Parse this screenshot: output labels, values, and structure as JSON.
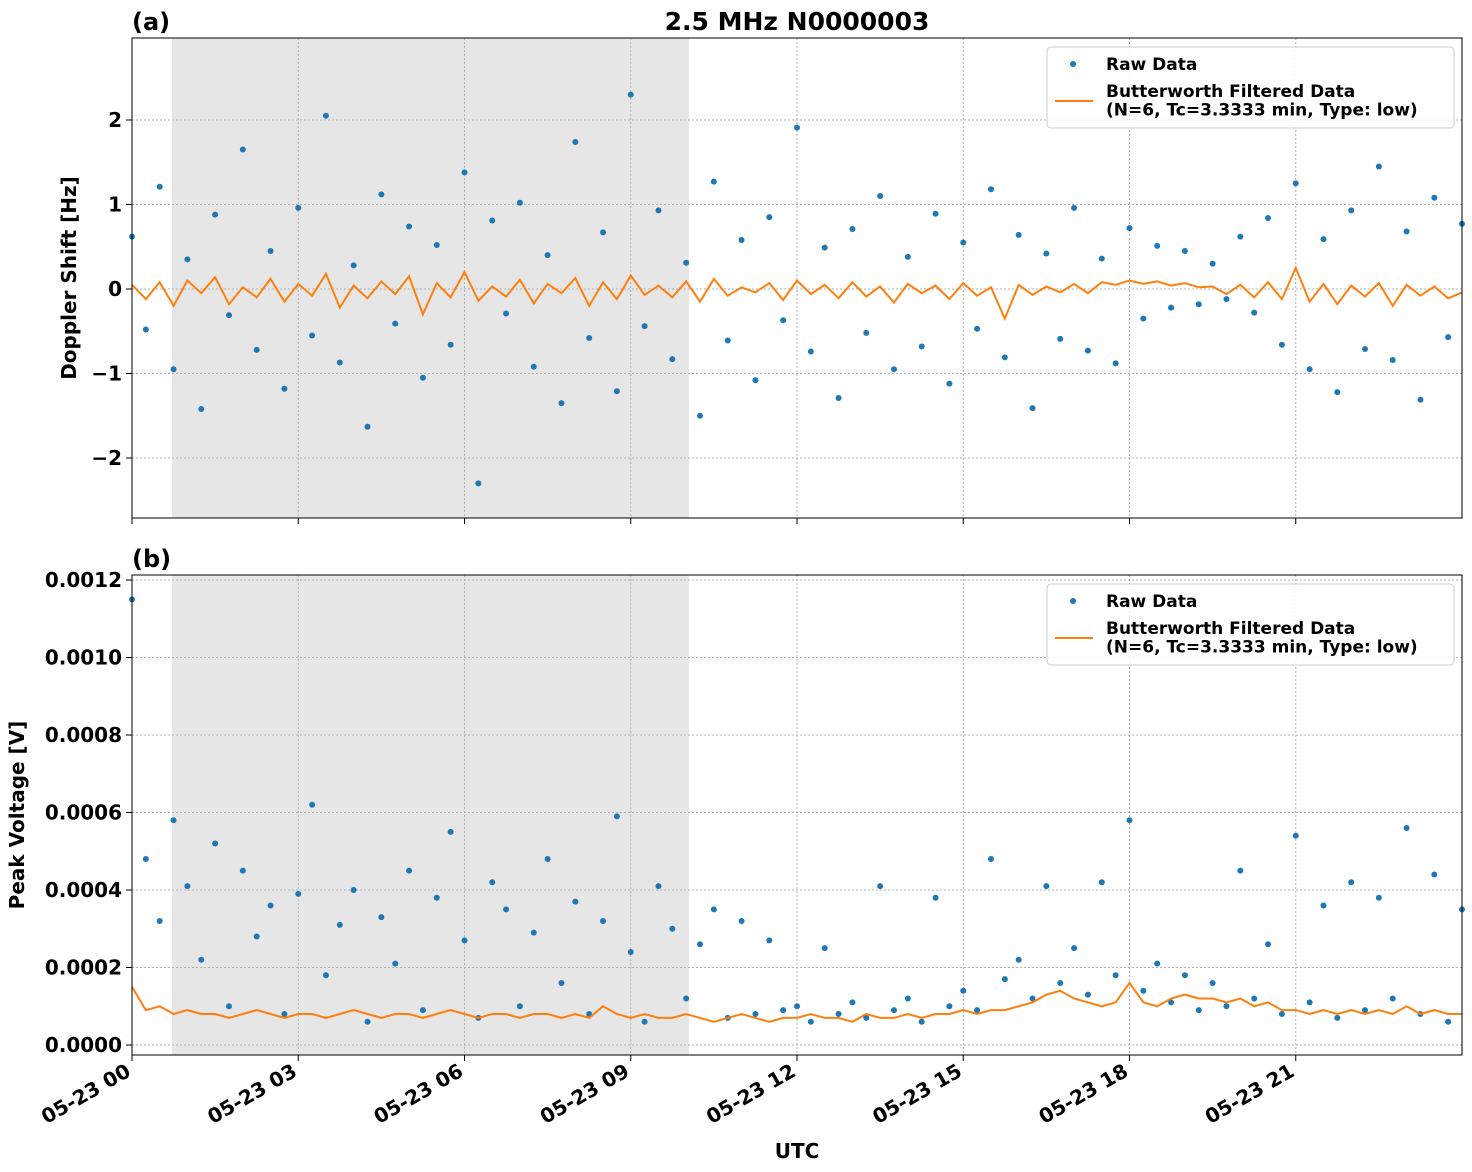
{
  "chart_data": [
    {
      "type": "scatter-line",
      "title": "2.5 MHz N0000003",
      "panel": "(a)",
      "ylabel": "Doppler Shift [Hz]",
      "xlim": [
        0,
        24
      ],
      "xticks": [
        0,
        3,
        6,
        9,
        12,
        15,
        18,
        21
      ],
      "ylim": [
        -2.71,
        2.97
      ],
      "yticks": [
        {
          "value": -2,
          "label": "−2"
        },
        {
          "value": -1,
          "label": "−1"
        },
        0,
        1,
        2
      ],
      "grid": true,
      "legend": "upper right",
      "shaded_span": [
        0.72,
        10.05
      ],
      "shade_color": "#e6e6e6",
      "x": [
        0,
        0.25,
        0.5,
        0.75,
        1,
        1.25,
        1.5,
        1.75,
        2,
        2.25,
        2.5,
        2.75,
        3,
        3.25,
        3.5,
        3.75,
        4,
        4.25,
        4.5,
        4.75,
        5,
        5.25,
        5.5,
        5.75,
        6,
        6.25,
        6.5,
        6.75,
        7,
        7.25,
        7.5,
        7.75,
        8,
        8.25,
        8.5,
        8.75,
        9,
        9.25,
        9.5,
        9.75,
        10,
        10.25,
        10.5,
        10.75,
        11,
        11.25,
        11.5,
        11.75,
        12,
        12.25,
        12.5,
        12.75,
        13,
        13.25,
        13.5,
        13.75,
        14,
        14.25,
        14.5,
        14.75,
        15,
        15.25,
        15.5,
        15.75,
        16,
        16.25,
        16.5,
        16.75,
        17,
        17.25,
        17.5,
        17.75,
        18,
        18.25,
        18.5,
        18.75,
        19,
        19.25,
        19.5,
        19.75,
        20,
        20.25,
        20.5,
        20.75,
        21,
        21.25,
        21.5,
        21.75,
        22,
        22.25,
        22.5,
        22.75,
        23,
        23.25,
        23.5,
        23.75,
        24
      ],
      "series": [
        {
          "name": "Raw Data",
          "kind": "points",
          "color": "#1f77b4",
          "values": [
            0.62,
            -0.48,
            1.21,
            -0.95,
            0.35,
            -1.42,
            0.88,
            -0.31,
            1.65,
            -0.72,
            0.45,
            -1.18,
            0.96,
            -0.55,
            2.05,
            -0.87,
            0.28,
            -1.63,
            1.12,
            -0.41,
            0.74,
            -1.05,
            0.52,
            -0.66,
            1.38,
            -2.3,
            0.81,
            -0.29,
            1.02,
            -0.92,
            0.4,
            -1.35,
            1.74,
            -0.58,
            0.67,
            -1.21,
            2.3,
            -0.44,
            0.93,
            -0.83,
            0.31,
            -1.5,
            1.27,
            -0.61,
            0.58,
            -1.08,
            0.85,
            -0.37,
            1.91,
            -0.74,
            0.49,
            -1.29,
            0.71,
            -0.52,
            1.1,
            -0.95,
            0.38,
            -0.68,
            0.89,
            -1.12,
            0.55,
            -0.47,
            1.18,
            -0.81,
            0.64,
            -1.41,
            0.42,
            -0.59,
            0.96,
            -0.73,
            0.36,
            -0.88,
            0.72,
            -0.35,
            0.51,
            -0.22,
            0.45,
            -0.18,
            0.3,
            -0.12,
            0.62,
            -0.28,
            0.84,
            -0.66,
            1.25,
            -0.95,
            0.59,
            -1.22,
            0.93,
            -0.71,
            1.45,
            -0.84,
            0.68,
            -1.31,
            1.08,
            -0.57,
            0.77
          ]
        },
        {
          "name": "Butterworth Filtered Data\n(N=6, Tc=3.3333 min, Type: low)",
          "kind": "line",
          "color": "#ff7f0e",
          "values": [
            0.05,
            -0.12,
            0.08,
            -0.2,
            0.1,
            -0.05,
            0.14,
            -0.18,
            0.02,
            -0.1,
            0.12,
            -0.15,
            0.06,
            -0.08,
            0.18,
            -0.22,
            0.04,
            -0.11,
            0.09,
            -0.06,
            0.15,
            -0.3,
            0.07,
            -0.1,
            0.2,
            -0.14,
            0.03,
            -0.09,
            0.11,
            -0.17,
            0.06,
            -0.05,
            0.13,
            -0.2,
            0.08,
            -0.12,
            0.16,
            -0.07,
            0.04,
            -0.1,
            0.09,
            -0.15,
            0.12,
            -0.08,
            0.02,
            -0.04,
            0.07,
            -0.13,
            0.1,
            -0.06,
            0.05,
            -0.11,
            0.08,
            -0.09,
            0.03,
            -0.16,
            0.06,
            -0.05,
            0.04,
            -0.12,
            0.07,
            -0.08,
            0.02,
            -0.35,
            0.05,
            -0.07,
            0.03,
            -0.04,
            0.06,
            -0.05,
            0.08,
            0.05,
            0.1,
            0.06,
            0.09,
            0.04,
            0.07,
            0.02,
            0.03,
            -0.06,
            0.05,
            -0.1,
            0.08,
            -0.12,
            0.25,
            -0.15,
            0.06,
            -0.18,
            0.04,
            -0.09,
            0.07,
            -0.2,
            0.05,
            -0.08,
            0.03,
            -0.11,
            -0.04
          ]
        }
      ]
    },
    {
      "type": "scatter-line",
      "panel": "(b)",
      "ylabel": "Peak Voltage [V]",
      "xlabel": "UTC",
      "xlim": [
        0,
        24
      ],
      "xticks": [
        {
          "value": 0,
          "label": "05-23 00"
        },
        {
          "value": 3,
          "label": "05-23 03"
        },
        {
          "value": 6,
          "label": "05-23 06"
        },
        {
          "value": 9,
          "label": "05-23 09"
        },
        {
          "value": 12,
          "label": "05-23 12"
        },
        {
          "value": 15,
          "label": "05-23 15"
        },
        {
          "value": 18,
          "label": "05-23 18"
        },
        {
          "value": 21,
          "label": "05-23 21"
        }
      ],
      "ylim": [
        -2.58e-05,
        0.001213
      ],
      "yticks": [
        {
          "value": 0,
          "label": "0.0000"
        },
        {
          "value": 0.0002,
          "label": "0.0002"
        },
        {
          "value": 0.0004,
          "label": "0.0004"
        },
        {
          "value": 0.0006,
          "label": "0.0006"
        },
        {
          "value": 0.0008,
          "label": "0.0008"
        },
        {
          "value": 0.001,
          "label": "0.0010"
        },
        {
          "value": 0.0012,
          "label": "0.0012"
        }
      ],
      "grid": true,
      "legend": "upper right",
      "shaded_span": [
        0.72,
        10.05
      ],
      "shade_color": "#e6e6e6",
      "x": [
        0,
        0.25,
        0.5,
        0.75,
        1,
        1.25,
        1.5,
        1.75,
        2,
        2.25,
        2.5,
        2.75,
        3,
        3.25,
        3.5,
        3.75,
        4,
        4.25,
        4.5,
        4.75,
        5,
        5.25,
        5.5,
        5.75,
        6,
        6.25,
        6.5,
        6.75,
        7,
        7.25,
        7.5,
        7.75,
        8,
        8.25,
        8.5,
        8.75,
        9,
        9.25,
        9.5,
        9.75,
        10,
        10.25,
        10.5,
        10.75,
        11,
        11.25,
        11.5,
        11.75,
        12,
        12.25,
        12.5,
        12.75,
        13,
        13.25,
        13.5,
        13.75,
        14,
        14.25,
        14.5,
        14.75,
        15,
        15.25,
        15.5,
        15.75,
        16,
        16.25,
        16.5,
        16.75,
        17,
        17.25,
        17.5,
        17.75,
        18,
        18.25,
        18.5,
        18.75,
        19,
        19.25,
        19.5,
        19.75,
        20,
        20.25,
        20.5,
        20.75,
        21,
        21.25,
        21.5,
        21.75,
        22,
        22.25,
        22.5,
        22.75,
        23,
        23.25,
        23.5,
        23.75,
        24
      ],
      "series": [
        {
          "name": "Raw Data",
          "kind": "points",
          "color": "#1f77b4",
          "values": [
            0.00115,
            0.00048,
            0.00032,
            0.00058,
            0.00041,
            0.00022,
            0.00052,
            0.0001,
            0.00045,
            0.00028,
            0.00036,
            8e-05,
            0.00039,
            0.00062,
            0.00018,
            0.00031,
            0.0004,
            6e-05,
            0.00033,
            0.00021,
            0.00045,
            9e-05,
            0.00038,
            0.00055,
            0.00027,
            7e-05,
            0.00042,
            0.00035,
            0.0001,
            0.00029,
            0.00048,
            0.00016,
            0.00037,
            8e-05,
            0.00032,
            0.00059,
            0.00024,
            6e-05,
            0.00041,
            0.0003,
            0.00012,
            0.00026,
            0.00035,
            7e-05,
            0.00032,
            8e-05,
            0.00027,
            9e-05,
            0.0001,
            6e-05,
            0.00025,
            8e-05,
            0.00011,
            7e-05,
            0.00041,
            9e-05,
            0.00012,
            6e-05,
            0.00038,
            0.0001,
            0.00014,
            9e-05,
            0.00048,
            0.00017,
            0.00022,
            0.00012,
            0.00041,
            0.00016,
            0.00025,
            0.00013,
            0.00042,
            0.00018,
            0.00058,
            0.00014,
            0.00021,
            0.00011,
            0.00018,
            9e-05,
            0.00016,
            0.0001,
            0.00045,
            0.00012,
            0.00026,
            8e-05,
            0.00054,
            0.00011,
            0.00036,
            7e-05,
            0.00042,
            9e-05,
            0.00038,
            0.00012,
            0.00056,
            8e-05,
            0.00044,
            6e-05,
            0.00035
          ]
        },
        {
          "name": "Butterworth Filtered Data\n(N=6, Tc=3.3333 min, Type: low)",
          "kind": "line",
          "color": "#ff7f0e",
          "values": [
            0.00015,
            9e-05,
            0.0001,
            8e-05,
            9e-05,
            8e-05,
            8e-05,
            7e-05,
            8e-05,
            9e-05,
            8e-05,
            7e-05,
            8e-05,
            8e-05,
            7e-05,
            8e-05,
            9e-05,
            8e-05,
            7e-05,
            8e-05,
            8e-05,
            7e-05,
            8e-05,
            9e-05,
            8e-05,
            7e-05,
            8e-05,
            8e-05,
            7e-05,
            8e-05,
            8e-05,
            7e-05,
            8e-05,
            7e-05,
            0.0001,
            8e-05,
            7e-05,
            8e-05,
            7e-05,
            7e-05,
            8e-05,
            7e-05,
            6e-05,
            7e-05,
            8e-05,
            7e-05,
            6e-05,
            7e-05,
            7e-05,
            8e-05,
            7e-05,
            7e-05,
            6e-05,
            8e-05,
            7e-05,
            7e-05,
            8e-05,
            7e-05,
            8e-05,
            8e-05,
            9e-05,
            8e-05,
            9e-05,
            9e-05,
            0.0001,
            0.00011,
            0.00013,
            0.00014,
            0.00012,
            0.00011,
            0.0001,
            0.00011,
            0.00016,
            0.00011,
            0.0001,
            0.00012,
            0.00013,
            0.00012,
            0.00012,
            0.00011,
            0.00012,
            0.0001,
            0.00011,
            9e-05,
            9e-05,
            8e-05,
            9e-05,
            8e-05,
            9e-05,
            8e-05,
            9e-05,
            8e-05,
            0.0001,
            8e-05,
            9e-05,
            8e-05,
            8e-05
          ]
        }
      ]
    }
  ]
}
